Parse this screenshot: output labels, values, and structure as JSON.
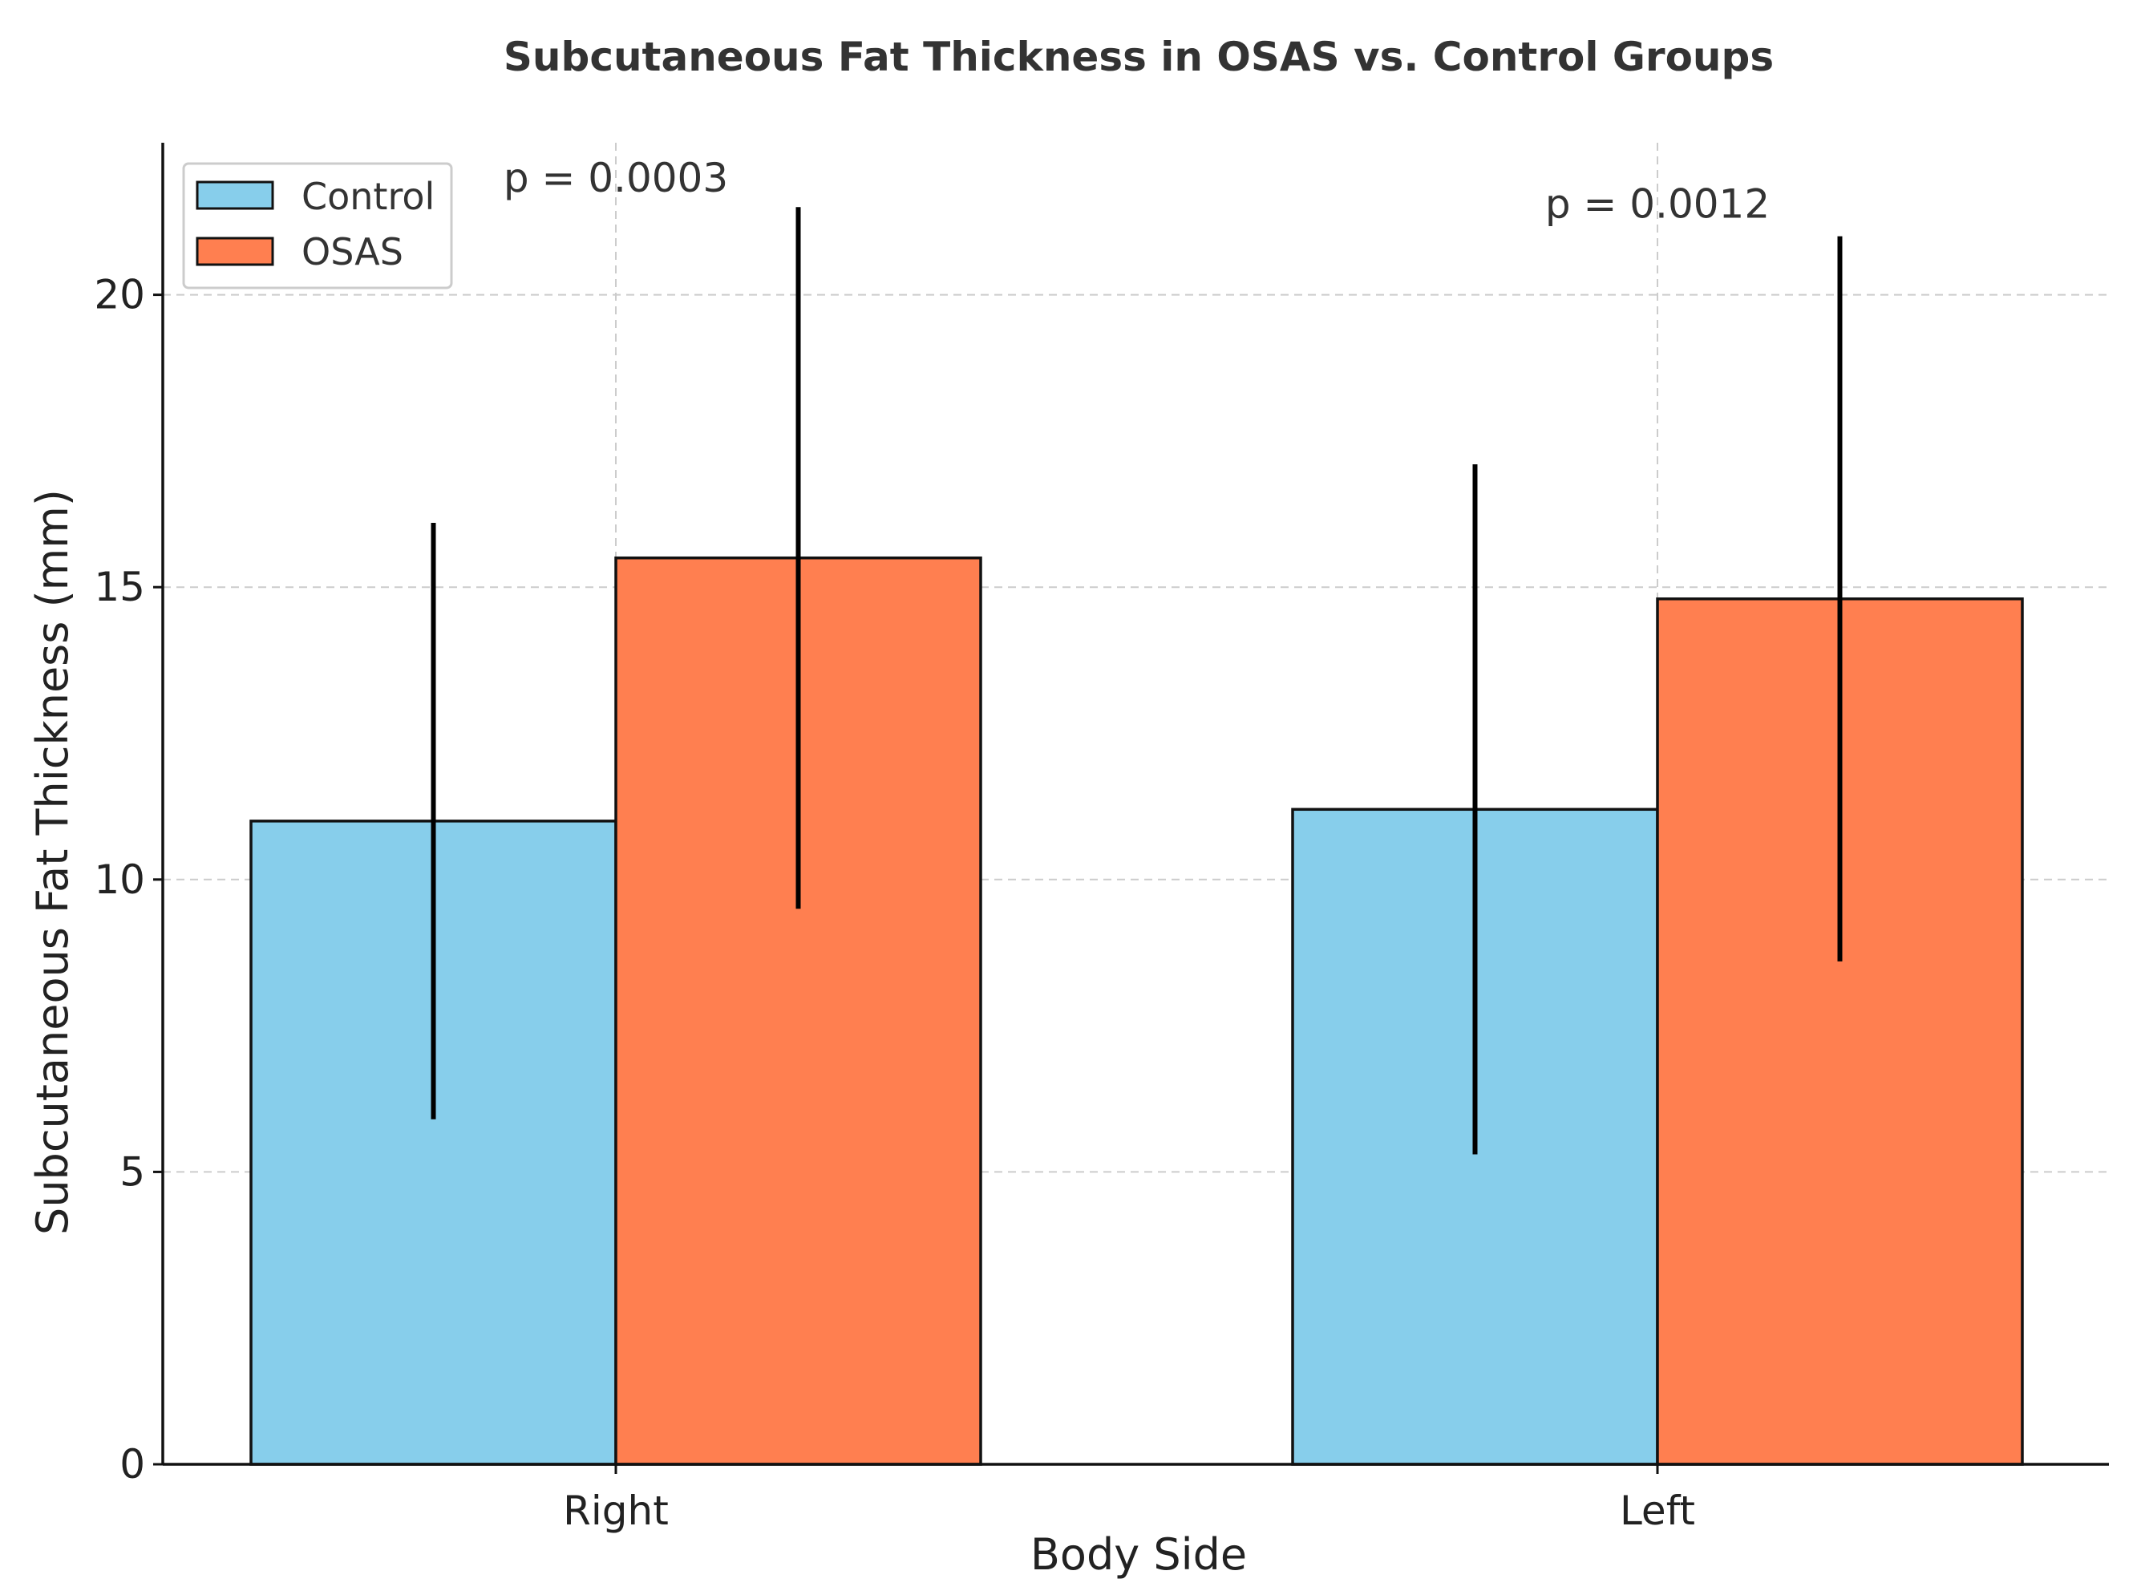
{
  "chart_data": {
    "type": "bar",
    "title": "Subcutaneous Fat Thickness in OSAS vs. Control Groups",
    "xlabel": "Body Side",
    "ylabel": "Subcutaneous Fat Thickness (mm)",
    "categories": [
      "Right",
      "Left"
    ],
    "ylim": [
      0,
      22.6
    ],
    "yticks": [
      0,
      5,
      10,
      15,
      20
    ],
    "grid": true,
    "legend_position": "top-left",
    "series": [
      {
        "name": "Control",
        "values": [
          11.0,
          11.2
        ],
        "errors": [
          5.1,
          5.9
        ],
        "color": "#87CEEB"
      },
      {
        "name": "OSAS",
        "values": [
          15.5,
          14.8
        ],
        "errors": [
          6.0,
          6.2
        ],
        "color": "#FF7F50"
      }
    ],
    "annotations": [
      {
        "text": "p = 0.0003",
        "category": "Right",
        "y": 22.0
      },
      {
        "text": "p = 0.0012",
        "category": "Left",
        "y": 21.55
      }
    ]
  }
}
